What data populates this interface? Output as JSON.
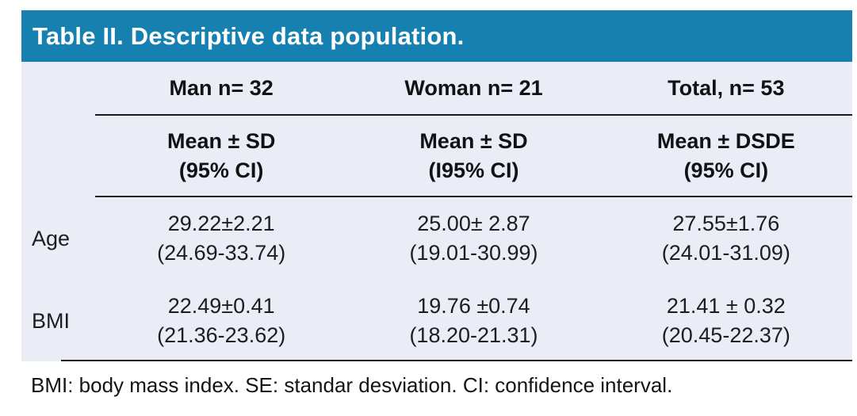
{
  "colors": {
    "header_bar": "#1681B1",
    "panel_background": "#EAEDF6",
    "rule": "#1b1b1d",
    "title_text": "#ffffff"
  },
  "table": {
    "title": "Table II. Descriptive data population.",
    "group_headers": [
      "Man n= 32",
      "Woman n= 21",
      "Total, n= 53"
    ],
    "stat_headers": [
      {
        "line1": "Mean ± SD",
        "line2": "(95% CI)"
      },
      {
        "line1": "Mean ± SD",
        "line2": "(I95% CI)"
      },
      {
        "line1": "Mean ± DSDE",
        "line2": "(95% CI)"
      }
    ],
    "rows": [
      {
        "label": "Age",
        "cells": [
          {
            "mean": "29.22±2.21",
            "ci": "(24.69-33.74)"
          },
          {
            "mean": "25.00± 2.87",
            "ci": "(19.01-30.99)"
          },
          {
            "mean": "27.55±1.76",
            "ci": "(24.01-31.09)"
          }
        ]
      },
      {
        "label": "BMI",
        "cells": [
          {
            "mean": "22.49±0.41",
            "ci": "(21.36-23.62)"
          },
          {
            "mean": "19.76 ±0.74",
            "ci": "(18.20-21.31)"
          },
          {
            "mean": "21.41 ± 0.32",
            "ci": "(20.45-22.37)"
          }
        ]
      }
    ]
  },
  "footnote": "BMI: body mass index. SE: standar desviation. CI: confidence interval.",
  "chart_data": {
    "type": "table",
    "title": "Table II. Descriptive data population.",
    "columns": [
      "",
      "Man n= 32 Mean ± SD (95% CI)",
      "Woman n= 21 Mean ± SD (I95% CI)",
      "Total, n= 53 Mean ± DSDE (95% CI)"
    ],
    "rows": [
      [
        "Age",
        "29.22±2.21 (24.69-33.74)",
        "25.00± 2.87 (19.01-30.99)",
        "27.55±1.76 (24.01-31.09)"
      ],
      [
        "BMI",
        "22.49±0.41 (21.36-23.62)",
        "19.76 ±0.74 (18.20-21.31)",
        "21.41 ± 0.32 (20.45-22.37)"
      ]
    ],
    "footnote": "BMI: body mass index. SE: standar desviation. CI: confidence interval."
  }
}
